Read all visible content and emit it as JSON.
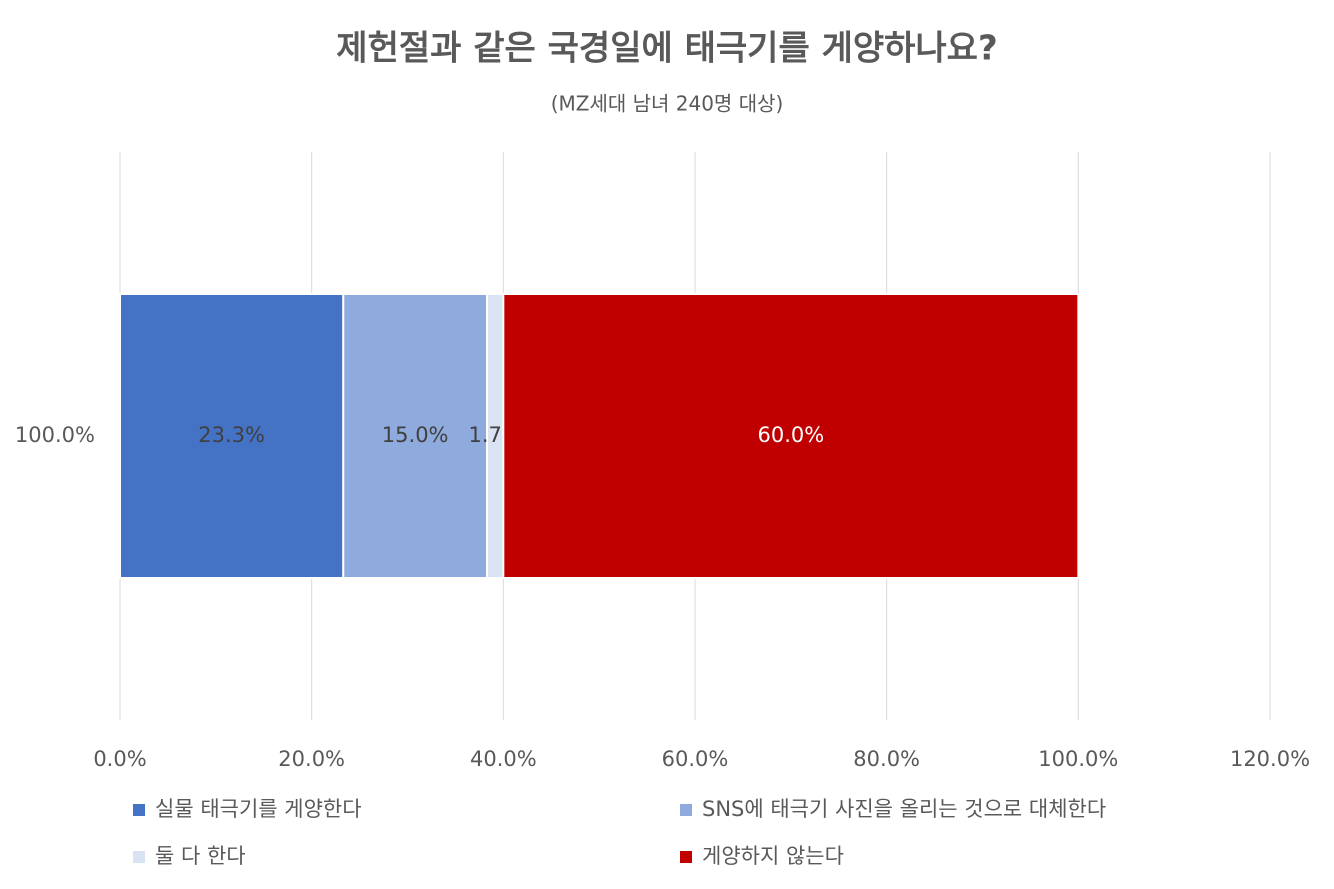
{
  "chart_data": {
    "type": "stacked-barh",
    "title": "제헌절과 같은 국경일에 태극기를 게양하나요?",
    "subtitle": "(MZ세대 남녀 240명 대상)",
    "categories": [
      "100.0%"
    ],
    "series": [
      {
        "name": "실물 태극기를 게양한다",
        "color": "#4472c4",
        "values": [
          23.3
        ],
        "value_labels": [
          "23.3%"
        ]
      },
      {
        "name": "SNS에 태극기 사진을 올리는 것으로 대체한다",
        "color": "#8faadc",
        "values": [
          15.0
        ],
        "value_labels": [
          "15.0%"
        ]
      },
      {
        "name": "둘 다 한다",
        "color": "#dae3f3",
        "values": [
          1.7
        ],
        "value_labels": [
          "1.7%"
        ]
      },
      {
        "name": "게양하지 않는다",
        "color": "#c00000",
        "values": [
          60.0
        ],
        "value_labels": [
          "60.0%"
        ]
      }
    ],
    "xlim": [
      0,
      120
    ],
    "xticks": [
      {
        "value": 0,
        "label": "0.0%"
      },
      {
        "value": 20,
        "label": "20.0%"
      },
      {
        "value": 40,
        "label": "40.0%"
      },
      {
        "value": 60,
        "label": "60.0%"
      },
      {
        "value": 80,
        "label": "80.0%"
      },
      {
        "value": 100,
        "label": "100.0%"
      },
      {
        "value": 120,
        "label": "120.0%"
      }
    ],
    "grid": true,
    "legend": "bottom"
  }
}
